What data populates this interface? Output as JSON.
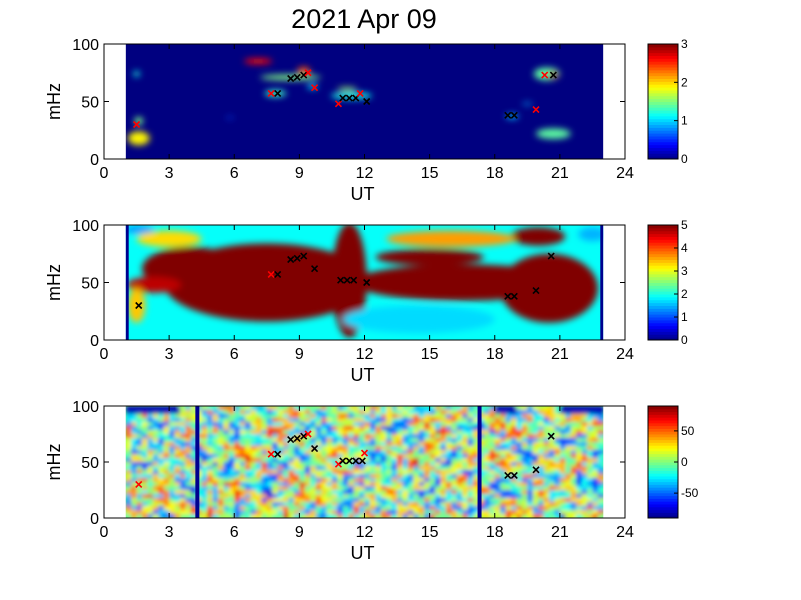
{
  "figure": {
    "title": "2021 Apr 09"
  },
  "chart_data": [
    {
      "type": "heatmap",
      "panel": "top",
      "xlabel": "UT",
      "ylabel": "mHz",
      "xlim": [
        0,
        24
      ],
      "ylim": [
        0,
        100
      ],
      "xticks": [
        0,
        3,
        6,
        9,
        12,
        15,
        18,
        21,
        24
      ],
      "yticks": [
        0,
        50,
        100
      ],
      "data_x_range": [
        1,
        23
      ],
      "colorbar": {
        "range": [
          0,
          3
        ],
        "ticks": [
          0,
          1,
          2,
          3
        ]
      },
      "background_value": 0,
      "blobs": [
        {
          "x": 1.6,
          "y": 18,
          "w": 1.0,
          "h": 12,
          "v": 1.9
        },
        {
          "x": 1.6,
          "y": 33,
          "w": 0.4,
          "h": 7,
          "v": 1.5
        },
        {
          "x": 1.5,
          "y": 74,
          "w": 0.3,
          "h": 5,
          "v": 1.2
        },
        {
          "x": 7.1,
          "y": 85,
          "w": 1.3,
          "h": 5,
          "v": 2.6
        },
        {
          "x": 8.6,
          "y": 71,
          "w": 2.8,
          "h": 5,
          "v": 1.5
        },
        {
          "x": 9.2,
          "y": 77,
          "w": 0.6,
          "h": 6,
          "v": 2.4
        },
        {
          "x": 7.9,
          "y": 57,
          "w": 1.0,
          "h": 6,
          "v": 1.3
        },
        {
          "x": 9.6,
          "y": 63,
          "w": 0.5,
          "h": 4,
          "v": 1.1
        },
        {
          "x": 11.4,
          "y": 55,
          "w": 1.9,
          "h": 6,
          "v": 1.2
        },
        {
          "x": 11.2,
          "y": 61,
          "w": 0.9,
          "h": 3,
          "v": 1.6
        },
        {
          "x": 20.4,
          "y": 74,
          "w": 1.2,
          "h": 11,
          "v": 1.4
        },
        {
          "x": 20.7,
          "y": 73,
          "w": 0.5,
          "h": 5,
          "v": 2.8
        },
        {
          "x": 20.7,
          "y": 22,
          "w": 1.6,
          "h": 9,
          "v": 1.4
        },
        {
          "x": 18.8,
          "y": 37,
          "w": 0.6,
          "h": 4,
          "v": 1.0
        },
        {
          "x": 19.5,
          "y": 48,
          "w": 0.5,
          "h": 2,
          "v": 0.9
        },
        {
          "x": 5.8,
          "y": 36,
          "w": 0.4,
          "h": 1.5,
          "v": 0.6
        }
      ],
      "markers": [
        {
          "x": 1.5,
          "y": 30,
          "c": "red"
        },
        {
          "x": 7.7,
          "y": 57,
          "c": "red"
        },
        {
          "x": 8.0,
          "y": 57,
          "c": "black"
        },
        {
          "x": 8.6,
          "y": 70,
          "c": "black"
        },
        {
          "x": 8.9,
          "y": 71,
          "c": "black"
        },
        {
          "x": 9.2,
          "y": 73,
          "c": "black"
        },
        {
          "x": 9.4,
          "y": 75,
          "c": "red"
        },
        {
          "x": 9.7,
          "y": 62,
          "c": "red"
        },
        {
          "x": 10.8,
          "y": 48,
          "c": "red"
        },
        {
          "x": 11.0,
          "y": 53,
          "c": "black"
        },
        {
          "x": 11.3,
          "y": 53,
          "c": "black"
        },
        {
          "x": 11.6,
          "y": 53,
          "c": "black"
        },
        {
          "x": 11.8,
          "y": 57,
          "c": "red"
        },
        {
          "x": 12.1,
          "y": 50,
          "c": "black"
        },
        {
          "x": 18.6,
          "y": 38,
          "c": "black"
        },
        {
          "x": 18.9,
          "y": 38,
          "c": "black"
        },
        {
          "x": 19.9,
          "y": 43,
          "c": "red"
        },
        {
          "x": 20.3,
          "y": 73,
          "c": "red"
        },
        {
          "x": 20.7,
          "y": 73,
          "c": "black"
        }
      ]
    },
    {
      "type": "heatmap",
      "panel": "middle",
      "xlabel": "UT",
      "ylabel": "mHz",
      "xlim": [
        0,
        24
      ],
      "ylim": [
        0,
        100
      ],
      "xticks": [
        0,
        3,
        6,
        9,
        12,
        15,
        18,
        21,
        24
      ],
      "yticks": [
        0,
        50,
        100
      ],
      "data_x_range": [
        1,
        23
      ],
      "colorbar": {
        "range": [
          0,
          5
        ],
        "ticks": [
          0,
          1,
          2,
          3,
          4,
          5
        ]
      },
      "background_value": 1.9,
      "blobs": [
        {
          "x": 7.5,
          "y": 50,
          "w": 9.5,
          "h": 68,
          "v": 5
        },
        {
          "x": 4.0,
          "y": 62,
          "w": 4.5,
          "h": 38,
          "v": 5
        },
        {
          "x": 11.3,
          "y": 52,
          "w": 1.6,
          "h": 100,
          "v": 5
        },
        {
          "x": 16.5,
          "y": 50,
          "w": 10,
          "h": 32,
          "v": 5
        },
        {
          "x": 20.5,
          "y": 45,
          "w": 4.5,
          "h": 60,
          "v": 5
        },
        {
          "x": 20.0,
          "y": 90,
          "w": 2.5,
          "h": 16,
          "v": 5
        },
        {
          "x": 15.0,
          "y": 72,
          "w": 5,
          "h": 14,
          "v": 5
        },
        {
          "x": 2.3,
          "y": 48,
          "w": 2.5,
          "h": 14,
          "v": 4.7
        },
        {
          "x": 16.0,
          "y": 88,
          "w": 6,
          "h": 14,
          "v": 3.6
        },
        {
          "x": 3.0,
          "y": 88,
          "w": 3,
          "h": 14,
          "v": 3.3
        },
        {
          "x": 1.5,
          "y": 30,
          "w": 0.8,
          "h": 30,
          "v": 3.4
        },
        {
          "x": 14.5,
          "y": 18,
          "w": 7,
          "h": 24,
          "v": 1.7
        },
        {
          "x": 22.5,
          "y": 92,
          "w": 1.3,
          "h": 12,
          "v": 1.5
        },
        {
          "x": 1.6,
          "y": 96,
          "w": 1.4,
          "h": 6,
          "v": 1.3
        }
      ],
      "markers": [
        {
          "x": 1.6,
          "y": 30,
          "c": "black"
        },
        {
          "x": 7.7,
          "y": 57,
          "c": "red"
        },
        {
          "x": 8.0,
          "y": 57,
          "c": "black"
        },
        {
          "x": 8.6,
          "y": 70,
          "c": "black"
        },
        {
          "x": 8.9,
          "y": 71,
          "c": "black"
        },
        {
          "x": 9.2,
          "y": 73,
          "c": "black"
        },
        {
          "x": 9.7,
          "y": 62,
          "c": "black"
        },
        {
          "x": 10.9,
          "y": 52,
          "c": "black"
        },
        {
          "x": 11.2,
          "y": 52,
          "c": "black"
        },
        {
          "x": 11.5,
          "y": 52,
          "c": "black"
        },
        {
          "x": 12.1,
          "y": 50,
          "c": "black"
        },
        {
          "x": 18.6,
          "y": 38,
          "c": "black"
        },
        {
          "x": 18.9,
          "y": 38,
          "c": "black"
        },
        {
          "x": 19.9,
          "y": 43,
          "c": "black"
        },
        {
          "x": 20.6,
          "y": 73,
          "c": "black"
        }
      ]
    },
    {
      "type": "heatmap",
      "panel": "bottom",
      "xlabel": "UT",
      "ylabel": "mHz",
      "xlim": [
        0,
        24
      ],
      "ylim": [
        0,
        100
      ],
      "xticks": [
        0,
        3,
        6,
        9,
        12,
        15,
        18,
        21,
        24
      ],
      "yticks": [
        0,
        50,
        100
      ],
      "data_x_range": [
        1,
        23
      ],
      "colorbar": {
        "range": [
          -90,
          90
        ],
        "ticks": [
          50,
          0,
          -50
        ]
      },
      "background_value": 0,
      "noise_amplitude": 55,
      "gaps": [
        4.3,
        17.3
      ],
      "markers": [
        {
          "x": 1.6,
          "y": 30,
          "c": "red"
        },
        {
          "x": 7.7,
          "y": 57,
          "c": "red"
        },
        {
          "x": 8.0,
          "y": 57,
          "c": "black"
        },
        {
          "x": 8.6,
          "y": 70,
          "c": "black"
        },
        {
          "x": 8.9,
          "y": 71,
          "c": "black"
        },
        {
          "x": 9.2,
          "y": 73,
          "c": "black"
        },
        {
          "x": 9.4,
          "y": 75,
          "c": "red"
        },
        {
          "x": 9.7,
          "y": 62,
          "c": "black"
        },
        {
          "x": 10.8,
          "y": 48,
          "c": "red"
        },
        {
          "x": 11.0,
          "y": 51,
          "c": "black"
        },
        {
          "x": 11.3,
          "y": 51,
          "c": "black"
        },
        {
          "x": 11.6,
          "y": 51,
          "c": "black"
        },
        {
          "x": 11.9,
          "y": 51,
          "c": "black"
        },
        {
          "x": 12.0,
          "y": 58,
          "c": "red"
        },
        {
          "x": 18.6,
          "y": 38,
          "c": "black"
        },
        {
          "x": 18.9,
          "y": 38,
          "c": "black"
        },
        {
          "x": 19.9,
          "y": 43,
          "c": "black"
        },
        {
          "x": 20.6,
          "y": 73,
          "c": "black"
        }
      ]
    }
  ]
}
